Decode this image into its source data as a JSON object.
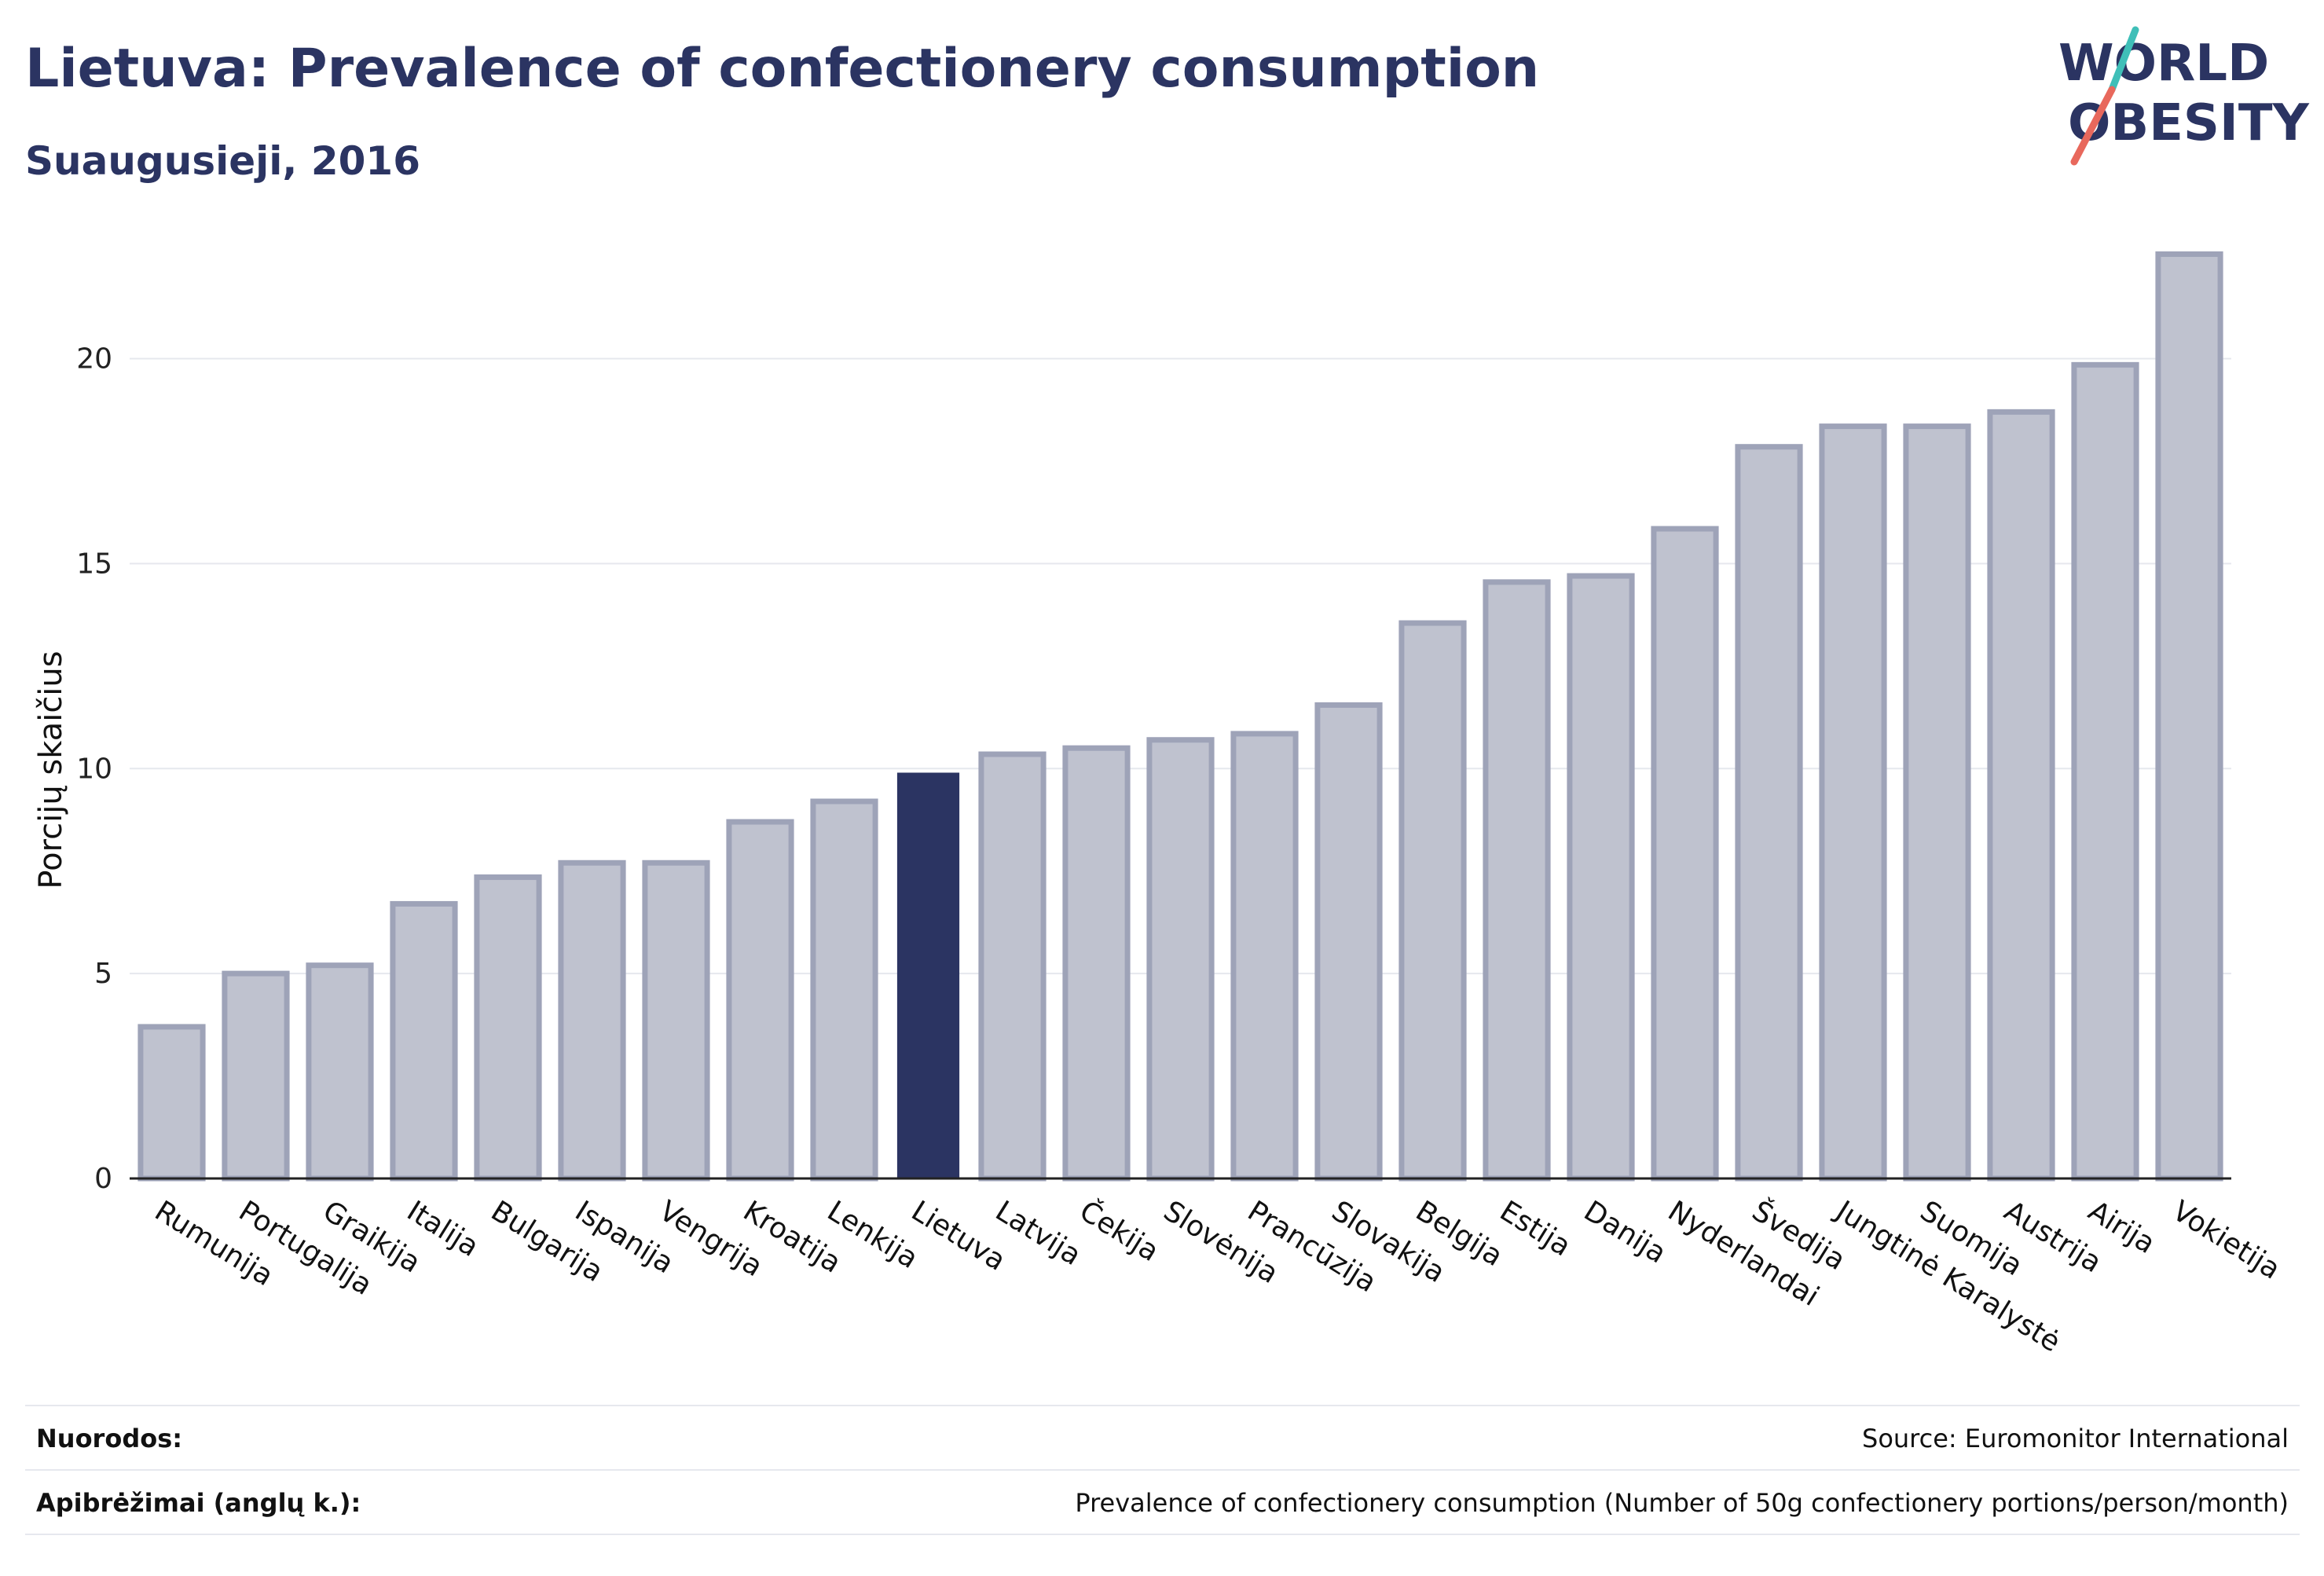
{
  "header": {
    "title": "Lietuva: Prevalence of confectionery consumption",
    "subtitle": "Suaugusieji, 2016"
  },
  "logo": {
    "line1": "WORLD",
    "line2": "OBESITY"
  },
  "footer": {
    "references_label": "Nuorodos:",
    "references_value": "Source: Euromonitor International",
    "definitions_label": "Apibrėžimai (anglų k.):",
    "definitions_value": "Prevalence of confectionery consumption (Number of 50g confectionery portions/person/month)"
  },
  "colors": {
    "highlight": "#2b3462",
    "bar_fill": "#bfc2cf",
    "bar_stroke": "#9ea3b8",
    "grid": "#e6e8ee",
    "logo_teal": "#3fbfb8",
    "logo_coral": "#e8685c"
  },
  "chart_data": {
    "type": "bar",
    "title": "Lietuva: Prevalence of confectionery consumption",
    "subtitle": "Suaugusieji, 2016",
    "xlabel": "",
    "ylabel": "Porcijų skaičius",
    "ylim": [
      0,
      23
    ],
    "yticks": [
      0,
      5,
      10,
      15,
      20
    ],
    "grid": true,
    "highlight": "Lietuva",
    "categories": [
      "Rumunija",
      "Portugalija",
      "Graikija",
      "Italija",
      "Bulgarija",
      "Ispanija",
      "Vengrija",
      "Kroatija",
      "Lenkija",
      "Lietuva",
      "Latvija",
      "Čekija",
      "Slovėnija",
      "Prancūzija",
      "Slovakija",
      "Belgija",
      "Estija",
      "Danija",
      "Nyderlandai",
      "Švedija",
      "Jungtinė Karalystė",
      "Suomija",
      "Austrija",
      "Airija",
      "Vokietija"
    ],
    "values": [
      3.7,
      5.0,
      5.2,
      6.7,
      7.35,
      7.7,
      7.7,
      8.7,
      9.2,
      9.9,
      10.35,
      10.5,
      10.7,
      10.85,
      11.55,
      13.55,
      14.55,
      14.7,
      15.85,
      17.85,
      18.35,
      18.35,
      18.7,
      19.85,
      22.55
    ]
  }
}
